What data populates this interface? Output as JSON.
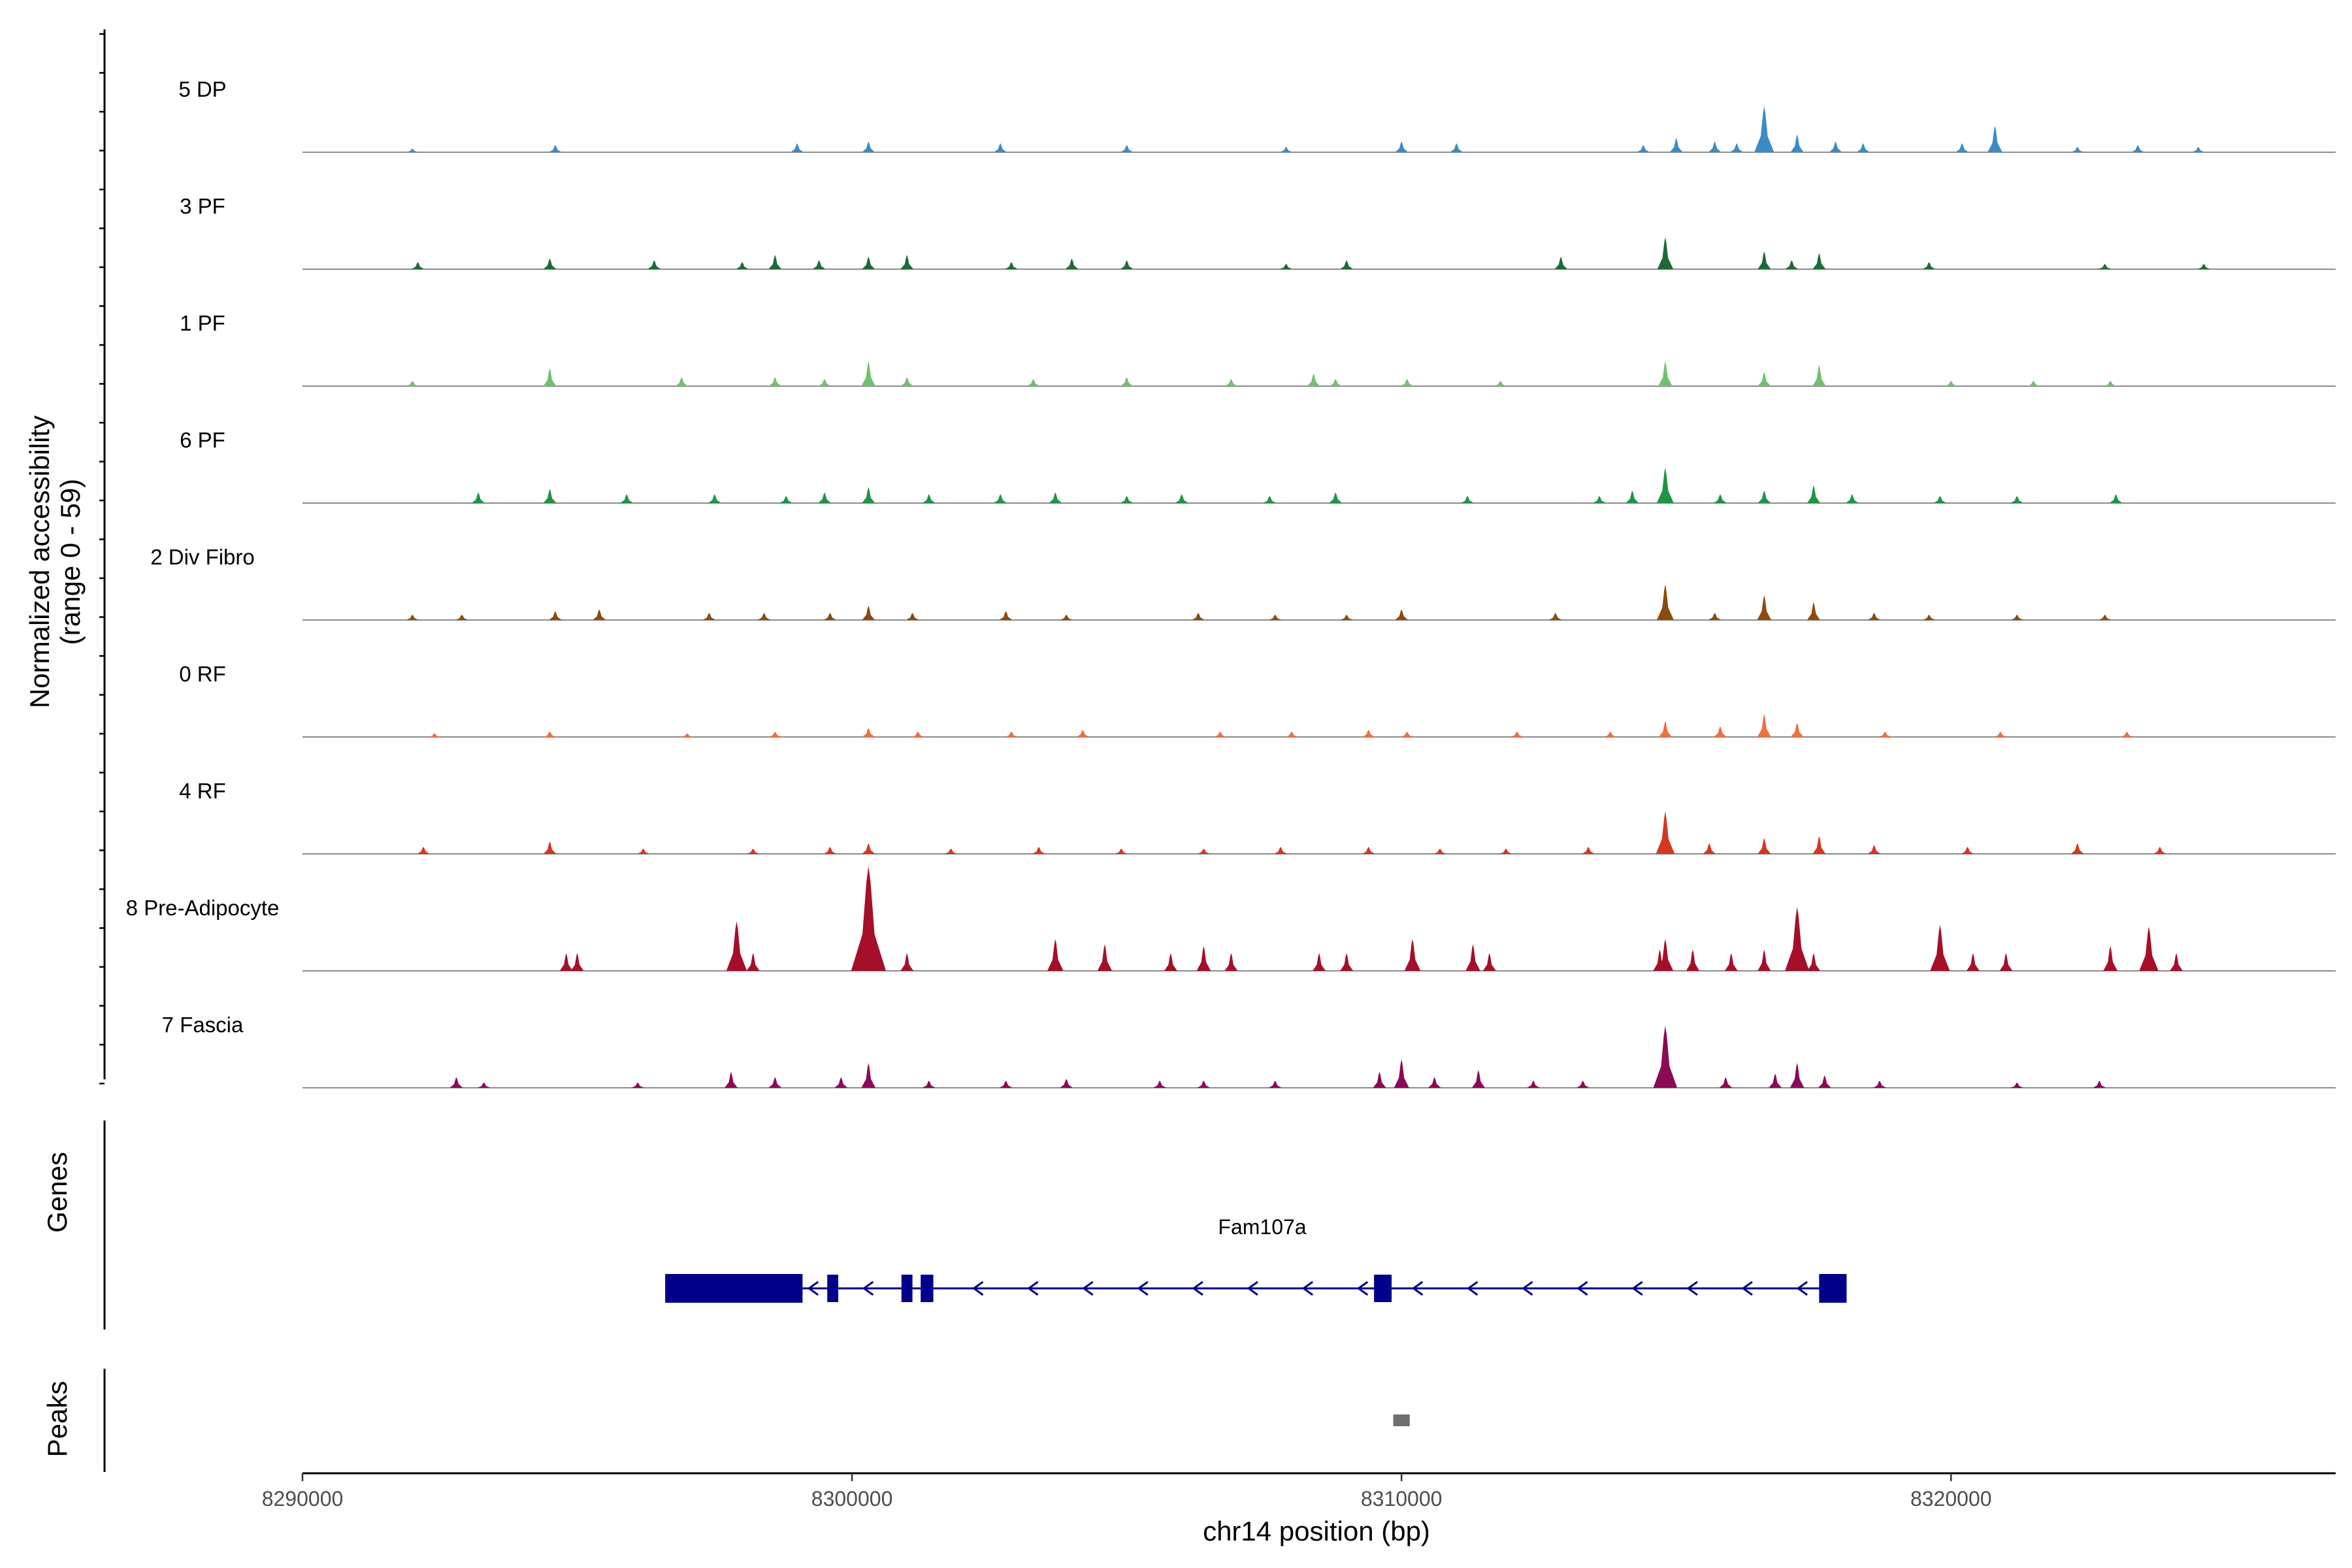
{
  "chart_data": {
    "type": "area",
    "title": "",
    "ylabel_line1": "Normalized accessibility",
    "ylabel_line2": "(range 0 - 59)",
    "yrange": [
      0,
      59
    ],
    "xlabel": "chr14 position (bp)",
    "xlim": [
      8290000,
      8327000
    ],
    "x_ticks": [
      8290000,
      8300000,
      8310000,
      8320000
    ],
    "x_tick_labels": [
      "8290000",
      "8300000",
      "8310000",
      "8320000"
    ],
    "tracks": [
      {
        "name": "5 DP",
        "color": "#3a8bc6",
        "peaks": [
          [
            8292000,
            2
          ],
          [
            8294600,
            4
          ],
          [
            8299000,
            5
          ],
          [
            8300300,
            6
          ],
          [
            8302700,
            5
          ],
          [
            8305000,
            4
          ],
          [
            8307900,
            3
          ],
          [
            8310000,
            6
          ],
          [
            8311000,
            5
          ],
          [
            8314400,
            4
          ],
          [
            8315000,
            8
          ],
          [
            8315700,
            6
          ],
          [
            8316100,
            5
          ],
          [
            8316600,
            26
          ],
          [
            8317200,
            10
          ],
          [
            8317900,
            6
          ],
          [
            8318400,
            5
          ],
          [
            8320200,
            5
          ],
          [
            8320800,
            15
          ],
          [
            8322300,
            3
          ],
          [
            8323400,
            4
          ],
          [
            8324500,
            3
          ]
        ]
      },
      {
        "name": "3 PF",
        "color": "#1c6b35",
        "peaks": [
          [
            8292100,
            4
          ],
          [
            8294500,
            6
          ],
          [
            8296400,
            5
          ],
          [
            8298000,
            4
          ],
          [
            8298600,
            8
          ],
          [
            8299400,
            5
          ],
          [
            8300300,
            7
          ],
          [
            8301000,
            8
          ],
          [
            8302900,
            4
          ],
          [
            8304000,
            6
          ],
          [
            8305000,
            5
          ],
          [
            8307900,
            3
          ],
          [
            8309000,
            5
          ],
          [
            8312900,
            7
          ],
          [
            8314800,
            18
          ],
          [
            8316600,
            10
          ],
          [
            8317100,
            5
          ],
          [
            8317600,
            9
          ],
          [
            8319600,
            4
          ],
          [
            8322800,
            3
          ],
          [
            8324600,
            3
          ]
        ]
      },
      {
        "name": "1 PF",
        "color": "#6fc26c",
        "peaks": [
          [
            8292000,
            3
          ],
          [
            8294500,
            10
          ],
          [
            8296900,
            5
          ],
          [
            8298600,
            5
          ],
          [
            8299500,
            4
          ],
          [
            8300300,
            14
          ],
          [
            8301000,
            5
          ],
          [
            8303300,
            4
          ],
          [
            8305000,
            5
          ],
          [
            8306900,
            4
          ],
          [
            8308400,
            7
          ],
          [
            8308800,
            4
          ],
          [
            8310100,
            4
          ],
          [
            8311800,
            3
          ],
          [
            8314800,
            14
          ],
          [
            8316600,
            8
          ],
          [
            8317600,
            12
          ],
          [
            8320000,
            3
          ],
          [
            8321500,
            3
          ],
          [
            8322900,
            3
          ]
        ]
      },
      {
        "name": "6 PF",
        "color": "#1f9446",
        "peaks": [
          [
            8293200,
            6
          ],
          [
            8294500,
            8
          ],
          [
            8295900,
            5
          ],
          [
            8297500,
            5
          ],
          [
            8298800,
            4
          ],
          [
            8299500,
            6
          ],
          [
            8300300,
            9
          ],
          [
            8301400,
            5
          ],
          [
            8302700,
            5
          ],
          [
            8303700,
            6
          ],
          [
            8305000,
            4
          ],
          [
            8306000,
            5
          ],
          [
            8307600,
            4
          ],
          [
            8308800,
            6
          ],
          [
            8311200,
            4
          ],
          [
            8313600,
            4
          ],
          [
            8314200,
            7
          ],
          [
            8314800,
            20
          ],
          [
            8315800,
            5
          ],
          [
            8316600,
            7
          ],
          [
            8317500,
            10
          ],
          [
            8318200,
            5
          ],
          [
            8319800,
            4
          ],
          [
            8321200,
            4
          ],
          [
            8323000,
            5
          ]
        ]
      },
      {
        "name": "2 Div Fibro",
        "color": "#8c4a0c",
        "peaks": [
          [
            8292000,
            3
          ],
          [
            8292900,
            3
          ],
          [
            8294600,
            5
          ],
          [
            8295400,
            6
          ],
          [
            8297400,
            4
          ],
          [
            8298400,
            4
          ],
          [
            8299600,
            4
          ],
          [
            8300300,
            8
          ],
          [
            8301100,
            4
          ],
          [
            8302800,
            5
          ],
          [
            8303900,
            3
          ],
          [
            8306300,
            4
          ],
          [
            8307700,
            3
          ],
          [
            8309000,
            3
          ],
          [
            8310000,
            6
          ],
          [
            8312800,
            4
          ],
          [
            8314800,
            20
          ],
          [
            8315700,
            4
          ],
          [
            8316600,
            14
          ],
          [
            8317500,
            10
          ],
          [
            8318600,
            4
          ],
          [
            8319600,
            3
          ],
          [
            8321200,
            3
          ],
          [
            8322800,
            3
          ]
        ]
      },
      {
        "name": "0 RF",
        "color": "#ec7040",
        "peaks": [
          [
            8292400,
            2
          ],
          [
            8294500,
            3
          ],
          [
            8297000,
            2
          ],
          [
            8298600,
            3
          ],
          [
            8300300,
            5
          ],
          [
            8301200,
            3
          ],
          [
            8302900,
            3
          ],
          [
            8304200,
            4
          ],
          [
            8306700,
            3
          ],
          [
            8308000,
            3
          ],
          [
            8309400,
            4
          ],
          [
            8310100,
            3
          ],
          [
            8312100,
            3
          ],
          [
            8313800,
            3
          ],
          [
            8314800,
            9
          ],
          [
            8315800,
            6
          ],
          [
            8316600,
            13
          ],
          [
            8317200,
            8
          ],
          [
            8318800,
            3
          ],
          [
            8320900,
            3
          ],
          [
            8323200,
            3
          ]
        ]
      },
      {
        "name": "4 RF",
        "color": "#d5361f",
        "peaks": [
          [
            8292200,
            4
          ],
          [
            8294500,
            7
          ],
          [
            8296200,
            3
          ],
          [
            8298200,
            3
          ],
          [
            8299600,
            4
          ],
          [
            8300300,
            6
          ],
          [
            8301800,
            3
          ],
          [
            8303400,
            4
          ],
          [
            8304900,
            3
          ],
          [
            8306400,
            3
          ],
          [
            8307800,
            4
          ],
          [
            8309400,
            4
          ],
          [
            8310700,
            3
          ],
          [
            8311900,
            3
          ],
          [
            8313400,
            4
          ],
          [
            8314800,
            24
          ],
          [
            8315600,
            6
          ],
          [
            8316600,
            9
          ],
          [
            8317600,
            10
          ],
          [
            8318600,
            5
          ],
          [
            8320300,
            4
          ],
          [
            8322300,
            6
          ],
          [
            8323800,
            4
          ]
        ]
      },
      {
        "name": "8 Pre-Adipocyte",
        "color": "#a50f2a",
        "peaks": [
          [
            8294800,
            10
          ],
          [
            8295000,
            10
          ],
          [
            8297900,
            28
          ],
          [
            8298200,
            10
          ],
          [
            8300300,
            59
          ],
          [
            8301000,
            10
          ],
          [
            8303700,
            18
          ],
          [
            8304600,
            15
          ],
          [
            8305800,
            10
          ],
          [
            8306400,
            14
          ],
          [
            8306900,
            10
          ],
          [
            8308500,
            10
          ],
          [
            8309000,
            10
          ],
          [
            8310200,
            18
          ],
          [
            8311300,
            15
          ],
          [
            8311600,
            10
          ],
          [
            8314700,
            12
          ],
          [
            8314800,
            18
          ],
          [
            8315300,
            12
          ],
          [
            8316000,
            10
          ],
          [
            8316600,
            12
          ],
          [
            8317200,
            36
          ],
          [
            8317500,
            10
          ],
          [
            8319800,
            26
          ],
          [
            8320400,
            10
          ],
          [
            8321000,
            10
          ],
          [
            8322900,
            14
          ],
          [
            8323600,
            25
          ],
          [
            8324100,
            10
          ]
        ]
      },
      {
        "name": "7 Fascia",
        "color": "#8a0a55",
        "peaks": [
          [
            8292800,
            6
          ],
          [
            8293300,
            3
          ],
          [
            8296100,
            3
          ],
          [
            8297800,
            9
          ],
          [
            8298600,
            6
          ],
          [
            8299800,
            6
          ],
          [
            8300300,
            14
          ],
          [
            8301400,
            4
          ],
          [
            8302800,
            4
          ],
          [
            8303900,
            5
          ],
          [
            8305600,
            4
          ],
          [
            8306400,
            4
          ],
          [
            8307700,
            4
          ],
          [
            8309600,
            9
          ],
          [
            8310000,
            16
          ],
          [
            8310600,
            6
          ],
          [
            8311400,
            10
          ],
          [
            8312400,
            4
          ],
          [
            8313300,
            4
          ],
          [
            8314800,
            35
          ],
          [
            8315900,
            6
          ],
          [
            8316800,
            8
          ],
          [
            8317200,
            14
          ],
          [
            8317700,
            7
          ],
          [
            8318700,
            4
          ],
          [
            8321200,
            3
          ],
          [
            8322700,
            4
          ]
        ]
      }
    ],
    "genes": {
      "label": "Genes",
      "gene_name": "Fam107a",
      "strand": "-",
      "start": 8296600,
      "end": 8318100,
      "exons": [
        [
          8296600,
          8299100
        ],
        [
          8299550,
          8299750
        ],
        [
          8300900,
          8301100
        ],
        [
          8301250,
          8301480
        ],
        [
          8309500,
          8309820
        ],
        [
          8317600,
          8318100
        ]
      ]
    },
    "peaks_track": {
      "label": "Peaks",
      "regions": [
        [
          8309850,
          8310150
        ]
      ]
    }
  }
}
